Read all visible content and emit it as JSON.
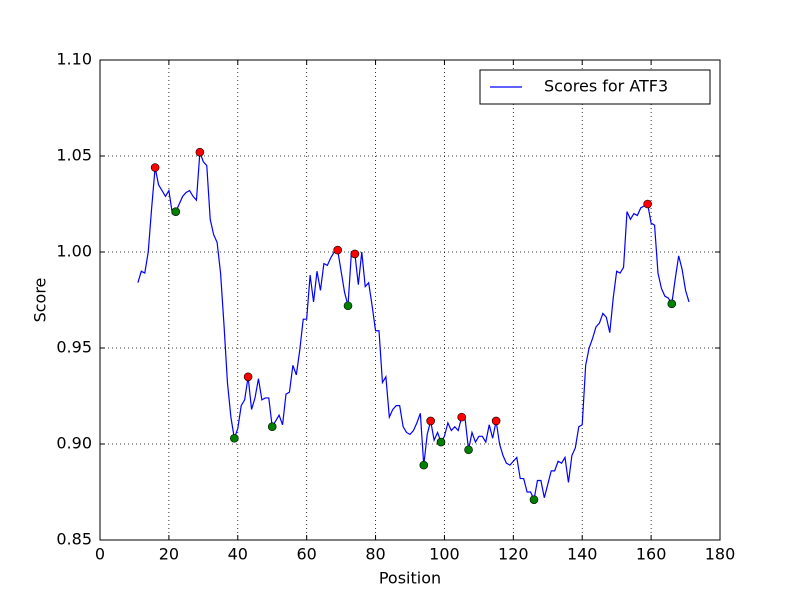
{
  "chart_data": {
    "type": "line",
    "xlabel": "Position",
    "ylabel": "Score",
    "x": [
      11,
      12,
      13,
      14,
      15,
      16,
      17,
      18,
      19,
      20,
      21,
      22,
      23,
      24,
      25,
      26,
      27,
      28,
      29,
      30,
      31,
      32,
      33,
      34,
      35,
      36,
      37,
      38,
      39,
      40,
      41,
      42,
      43,
      44,
      45,
      46,
      47,
      48,
      49,
      50,
      51,
      52,
      53,
      54,
      55,
      56,
      57,
      58,
      59,
      60,
      61,
      62,
      63,
      64,
      65,
      66,
      67,
      68,
      69,
      70,
      71,
      72,
      73,
      74,
      75,
      76,
      77,
      78,
      79,
      80,
      81,
      82,
      83,
      84,
      85,
      86,
      87,
      88,
      89,
      90,
      91,
      92,
      93,
      94,
      95,
      96,
      97,
      98,
      99,
      100,
      101,
      102,
      103,
      104,
      105,
      106,
      107,
      108,
      109,
      110,
      111,
      112,
      113,
      114,
      115,
      116,
      117,
      118,
      119,
      120,
      121,
      122,
      123,
      124,
      125,
      126,
      127,
      128,
      129,
      130,
      131,
      132,
      133,
      134,
      135,
      136,
      137,
      138,
      139,
      140,
      141,
      142,
      143,
      144,
      145,
      146,
      147,
      148,
      149,
      150,
      151,
      152,
      153,
      154,
      155,
      156,
      157,
      158,
      159,
      160,
      161,
      162,
      163,
      164,
      165,
      166,
      167,
      168,
      169,
      170,
      171
    ],
    "series": [
      {
        "name": "Scores for ATF3",
        "color": "#0000ff",
        "values": [
          0.984,
          0.99,
          0.989,
          1.0,
          1.023,
          1.044,
          1.035,
          1.032,
          1.029,
          1.032,
          1.02,
          1.021,
          1.025,
          1.029,
          1.031,
          1.032,
          1.029,
          1.027,
          1.052,
          1.047,
          1.045,
          1.017,
          1.009,
          1.005,
          0.989,
          0.962,
          0.932,
          0.914,
          0.903,
          0.908,
          0.92,
          0.923,
          0.935,
          0.918,
          0.924,
          0.934,
          0.923,
          0.924,
          0.924,
          0.909,
          0.912,
          0.915,
          0.91,
          0.926,
          0.927,
          0.941,
          0.936,
          0.949,
          0.965,
          0.965,
          0.988,
          0.974,
          0.99,
          0.98,
          0.994,
          0.993,
          0.997,
          1.0,
          1.001,
          0.99,
          0.979,
          0.972,
          1.0,
          0.999,
          0.983,
          1.0,
          0.982,
          0.984,
          0.972,
          0.959,
          0.959,
          0.932,
          0.935,
          0.914,
          0.918,
          0.92,
          0.92,
          0.909,
          0.906,
          0.905,
          0.907,
          0.911,
          0.916,
          0.889,
          0.905,
          0.912,
          0.902,
          0.906,
          0.901,
          0.904,
          0.911,
          0.907,
          0.909,
          0.907,
          0.914,
          0.913,
          0.897,
          0.906,
          0.901,
          0.904,
          0.904,
          0.901,
          0.91,
          0.903,
          0.912,
          0.9,
          0.894,
          0.89,
          0.889,
          0.891,
          0.893,
          0.882,
          0.882,
          0.875,
          0.875,
          0.871,
          0.881,
          0.881,
          0.872,
          0.879,
          0.886,
          0.886,
          0.891,
          0.89,
          0.893,
          0.88,
          0.894,
          0.898,
          0.909,
          0.91,
          0.941,
          0.95,
          0.955,
          0.961,
          0.963,
          0.968,
          0.966,
          0.958,
          0.976,
          0.99,
          0.989,
          0.992,
          1.021,
          1.017,
          1.02,
          1.019,
          1.023,
          1.024,
          1.025,
          1.015,
          1.014,
          0.989,
          0.981,
          0.977,
          0.976,
          0.973,
          0.986,
          0.998,
          0.991,
          0.98,
          0.974
        ]
      }
    ],
    "markers": [
      {
        "color": "#ff0000",
        "x": [
          16,
          29,
          43,
          69,
          74,
          96,
          105,
          115,
          159
        ],
        "y": [
          1.044,
          1.052,
          0.935,
          1.001,
          0.999,
          0.912,
          0.914,
          0.912,
          1.025
        ]
      },
      {
        "color": "#008000",
        "x": [
          22,
          39,
          50,
          72,
          94,
          99,
          107,
          126,
          166
        ],
        "y": [
          1.021,
          0.903,
          0.909,
          0.972,
          0.889,
          0.901,
          0.897,
          0.871,
          0.973
        ]
      }
    ],
    "xlim": [
      0,
      180
    ],
    "xticks": [
      0,
      20,
      40,
      60,
      80,
      100,
      120,
      140,
      160,
      180
    ],
    "ylim": [
      0.85,
      1.1
    ],
    "yticks": [
      0.85,
      {
        "value": 0.9,
        "label": "0.90"
      },
      0.95,
      {
        "value": 1.0,
        "label": "1.00"
      },
      1.05,
      {
        "value": 1.1,
        "label": "1.10"
      }
    ],
    "grid": true,
    "legend": "upper right"
  }
}
